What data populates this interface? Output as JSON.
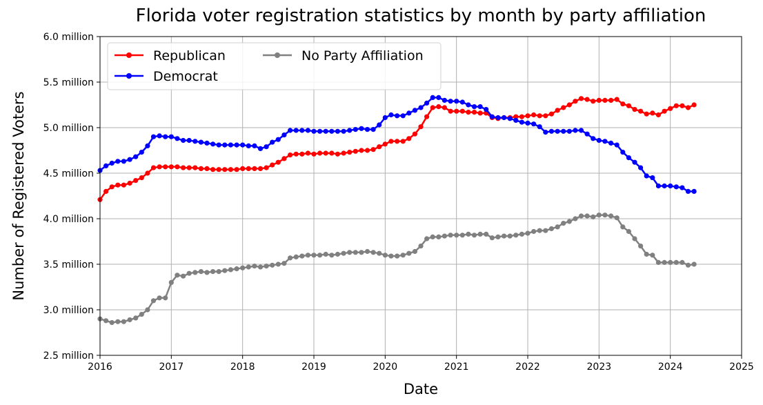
{
  "chart_data": {
    "type": "line",
    "title": "Florida voter registration statistics by month by party affiliation",
    "xlabel": "Date",
    "ylabel": "Number of Registered Voters",
    "xlim": [
      2016,
      2025
    ],
    "ylim": [
      2.5,
      6.0
    ],
    "x_ticks": [
      "2016",
      "2017",
      "2018",
      "2019",
      "2020",
      "2021",
      "2022",
      "2023",
      "2024",
      "2025"
    ],
    "y_ticks": [
      "2.5 million",
      "3.0 million",
      "3.5 million",
      "4.0 million",
      "4.5 million",
      "5.0 million",
      "5.5 million",
      "6.0 million"
    ],
    "y_tick_values": [
      2.5,
      3.0,
      3.5,
      4.0,
      4.5,
      5.0,
      5.5,
      6.0
    ],
    "grid": true,
    "legend": "top-left",
    "x_start": "2016-01",
    "x_step": "monthly",
    "series": [
      {
        "name": "Republican",
        "color": "#ff0000",
        "values": [
          4.21,
          4.3,
          4.35,
          4.37,
          4.37,
          4.39,
          4.42,
          4.45,
          4.5,
          4.56,
          4.57,
          4.57,
          4.57,
          4.57,
          4.56,
          4.56,
          4.56,
          4.55,
          4.55,
          4.54,
          4.54,
          4.54,
          4.54,
          4.54,
          4.55,
          4.55,
          4.55,
          4.55,
          4.56,
          4.59,
          4.62,
          4.66,
          4.7,
          4.71,
          4.71,
          4.72,
          4.71,
          4.72,
          4.72,
          4.72,
          4.71,
          4.72,
          4.73,
          4.74,
          4.75,
          4.75,
          4.76,
          4.79,
          4.82,
          4.85,
          4.85,
          4.85,
          4.88,
          4.93,
          5.01,
          5.12,
          5.22,
          5.23,
          5.22,
          5.18,
          5.18,
          5.18,
          5.17,
          5.17,
          5.16,
          5.16,
          5.11,
          5.1,
          5.11,
          5.11,
          5.12,
          5.12,
          5.13,
          5.14,
          5.13,
          5.13,
          5.15,
          5.19,
          5.22,
          5.25,
          5.29,
          5.32,
          5.31,
          5.29,
          5.3,
          5.3,
          5.3,
          5.31,
          5.26,
          5.24,
          5.2,
          5.18,
          5.15,
          5.16,
          5.14,
          5.18,
          5.21,
          5.24,
          5.24,
          5.22,
          5.25
        ]
      },
      {
        "name": "Democrat",
        "color": "#0000ff",
        "values": [
          4.53,
          4.58,
          4.61,
          4.63,
          4.63,
          4.65,
          4.68,
          4.73,
          4.8,
          4.9,
          4.91,
          4.9,
          4.9,
          4.88,
          4.86,
          4.86,
          4.85,
          4.84,
          4.83,
          4.82,
          4.81,
          4.81,
          4.81,
          4.81,
          4.81,
          4.8,
          4.8,
          4.77,
          4.79,
          4.84,
          4.87,
          4.92,
          4.97,
          4.97,
          4.97,
          4.97,
          4.96,
          4.96,
          4.96,
          4.96,
          4.96,
          4.96,
          4.97,
          4.98,
          4.99,
          4.98,
          4.98,
          5.03,
          5.11,
          5.14,
          5.13,
          5.13,
          5.16,
          5.19,
          5.22,
          5.27,
          5.33,
          5.33,
          5.3,
          5.29,
          5.29,
          5.28,
          5.25,
          5.23,
          5.23,
          5.2,
          5.12,
          5.11,
          5.11,
          5.1,
          5.08,
          5.06,
          5.05,
          5.04,
          5.01,
          4.95,
          4.96,
          4.96,
          4.96,
          4.96,
          4.97,
          4.97,
          4.93,
          4.88,
          4.86,
          4.85,
          4.83,
          4.81,
          4.73,
          4.67,
          4.62,
          4.56,
          4.47,
          4.45,
          4.36,
          4.36,
          4.36,
          4.35,
          4.34,
          4.3,
          4.3
        ]
      },
      {
        "name": "No Party Affiliation",
        "color": "#808080",
        "values": [
          2.9,
          2.88,
          2.86,
          2.87,
          2.87,
          2.89,
          2.91,
          2.95,
          3.0,
          3.1,
          3.13,
          3.13,
          3.3,
          3.38,
          3.37,
          3.4,
          3.41,
          3.42,
          3.41,
          3.42,
          3.42,
          3.43,
          3.44,
          3.45,
          3.46,
          3.47,
          3.48,
          3.47,
          3.48,
          3.49,
          3.5,
          3.51,
          3.57,
          3.58,
          3.59,
          3.6,
          3.6,
          3.6,
          3.61,
          3.6,
          3.61,
          3.62,
          3.63,
          3.63,
          3.63,
          3.64,
          3.63,
          3.62,
          3.6,
          3.59,
          3.59,
          3.6,
          3.62,
          3.64,
          3.7,
          3.78,
          3.8,
          3.8,
          3.81,
          3.82,
          3.82,
          3.82,
          3.83,
          3.82,
          3.83,
          3.83,
          3.79,
          3.8,
          3.81,
          3.81,
          3.82,
          3.83,
          3.84,
          3.86,
          3.87,
          3.87,
          3.89,
          3.91,
          3.95,
          3.97,
          4.0,
          4.03,
          4.03,
          4.02,
          4.04,
          4.04,
          4.03,
          4.01,
          3.91,
          3.86,
          3.78,
          3.7,
          3.61,
          3.6,
          3.52,
          3.52,
          3.52,
          3.52,
          3.52,
          3.49,
          3.5
        ]
      }
    ]
  }
}
